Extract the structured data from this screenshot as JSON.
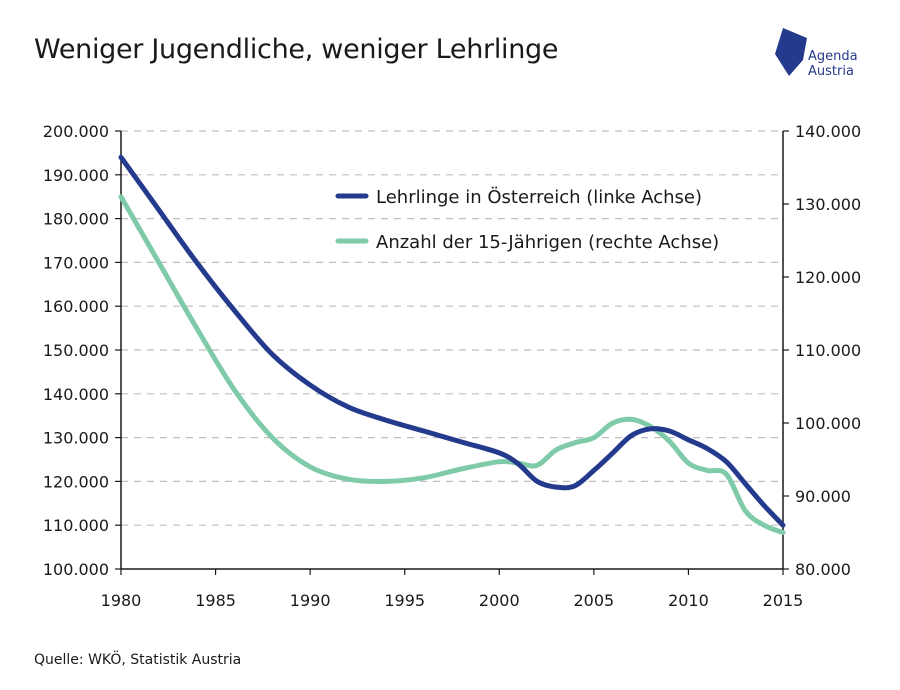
{
  "header": {
    "title": "Weniger Jugendliche, weniger Lehrlinge"
  },
  "logo": {
    "line1": "Agenda",
    "line2": "Austria",
    "color": "#243a8c"
  },
  "footer": {
    "source": "Quelle: WKÖ, Statistik Austria"
  },
  "colors": {
    "series1": "#243a8c",
    "series2": "#7fcaa8",
    "grid": "#bfbfbf",
    "axis": "#1a1a1a"
  },
  "chart_data": {
    "type": "line",
    "title": "Weniger Jugendliche, weniger Lehrlinge",
    "x_ticks": [
      "1980",
      "1985",
      "1990",
      "1995",
      "2000",
      "2005",
      "2010",
      "2015"
    ],
    "xlim": [
      1980,
      2015
    ],
    "y_left": {
      "lim": [
        100000,
        200000
      ],
      "ticks": [
        100000,
        110000,
        120000,
        130000,
        140000,
        150000,
        160000,
        170000,
        180000,
        190000,
        200000
      ],
      "tick_labels": [
        "100.000",
        "110.000",
        "120.000",
        "130.000",
        "140.000",
        "150.000",
        "160.000",
        "170.000",
        "180.000",
        "190.000",
        "200.000"
      ]
    },
    "y_right": {
      "lim": [
        80000,
        140000
      ],
      "ticks": [
        80000,
        90000,
        100000,
        110000,
        120000,
        130000,
        140000
      ],
      "tick_labels": [
        "80.000",
        "90.000",
        "100.000",
        "110.000",
        "120.000",
        "130.000",
        "140.000"
      ]
    },
    "grid": "horizontal dashed",
    "legend_position": "top-right",
    "series": [
      {
        "name": "Lehrlinge in Österreich (linke Achse)",
        "axis": "left",
        "x": [
          1980,
          1982,
          1984,
          1986,
          1988,
          1990,
          1992,
          1994,
          1996,
          1998,
          2000,
          2001,
          2002,
          2003,
          2004,
          2005,
          2006,
          2007,
          2008,
          2009,
          2010,
          2011,
          2012,
          2013,
          2014,
          2015
        ],
        "values": [
          194000,
          182000,
          170000,
          159000,
          149000,
          142000,
          137000,
          134000,
          131500,
          129000,
          126500,
          124000,
          120000,
          118700,
          119000,
          122500,
          126500,
          130500,
          132000,
          131500,
          129500,
          127500,
          124500,
          119500,
          114500,
          110000
        ]
      },
      {
        "name": "Anzahl der 15-Jährigen (rechte Achse)",
        "axis": "right",
        "x": [
          1980,
          1982,
          1984,
          1986,
          1988,
          1990,
          1992,
          1994,
          1996,
          1998,
          2000,
          2001,
          2002,
          2003,
          2004,
          2005,
          2006,
          2007,
          2008,
          2009,
          2010,
          2011,
          2012,
          2013,
          2014,
          2015
        ],
        "values": [
          131000,
          122000,
          113000,
          104500,
          98000,
          94000,
          92300,
          92000,
          92500,
          93700,
          94700,
          94500,
          94200,
          96300,
          97300,
          98000,
          100000,
          100500,
          99500,
          97500,
          94500,
          93500,
          93000,
          88000,
          86000,
          85000
        ]
      }
    ]
  }
}
